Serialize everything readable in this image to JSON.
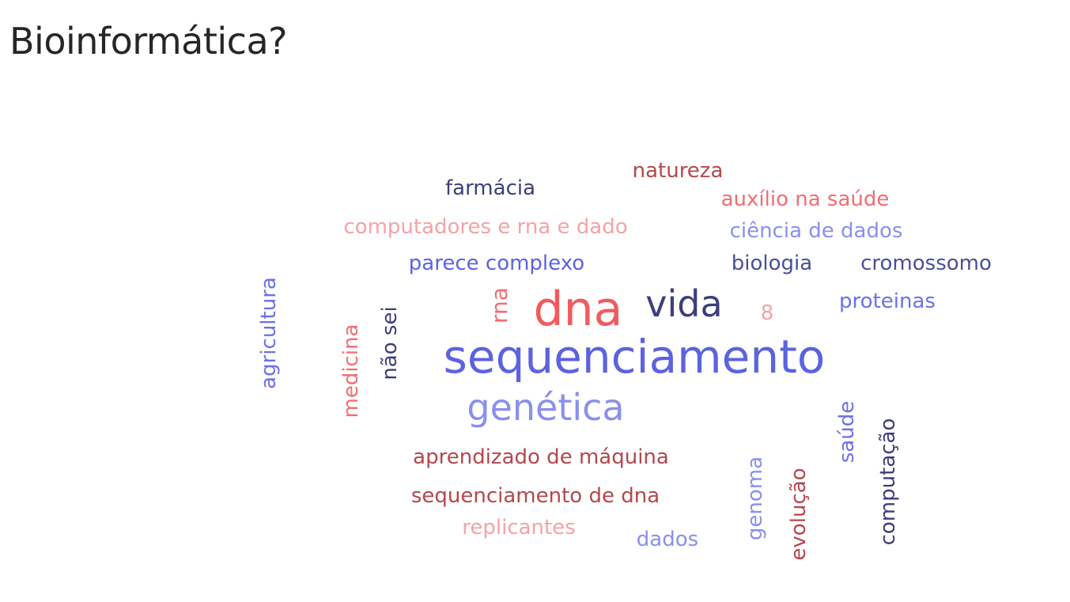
{
  "title": "Bioinformática?",
  "colors": {
    "navy": "#3b3f7a",
    "blue": "#5b63e0",
    "lightblue": "#8a90ec",
    "darkred": "#b5474c",
    "red": "#f25a5e",
    "pink": "#f5a3a6",
    "salmon": "#ee6b70"
  },
  "words": [
    {
      "text": "natureza",
      "color": "#b5474c"
    },
    {
      "text": "farmácia",
      "color": "#3b3f7a"
    },
    {
      "text": "auxílio na saúde",
      "color": "#f26e72"
    },
    {
      "text": "computadores e rna e dado",
      "color": "#f5a3a6"
    },
    {
      "text": "ciência de dados",
      "color": "#8a90ec"
    },
    {
      "text": "parece complexo",
      "color": "#5b63e0"
    },
    {
      "text": "biologia",
      "color": "#4a4f9a"
    },
    {
      "text": "cromossomo",
      "color": "#4a4f9a"
    },
    {
      "text": "rna",
      "color": "#f26e72"
    },
    {
      "text": "dna",
      "color": "#f25a5e"
    },
    {
      "text": "vida",
      "color": "#3b3f7a"
    },
    {
      "text": "8",
      "color": "#f5a3a6"
    },
    {
      "text": "proteinas",
      "color": "#6b72e6"
    },
    {
      "text": "agricultura",
      "color": "#6b72e6"
    },
    {
      "text": "medicina",
      "color": "#f26e72"
    },
    {
      "text": "não sei",
      "color": "#3b3f7a"
    },
    {
      "text": "sequenciamento",
      "color": "#5b63e0"
    },
    {
      "text": "genética",
      "color": "#8a90ec"
    },
    {
      "text": "aprendizado de máquina",
      "color": "#b5474c"
    },
    {
      "text": "sequenciamento de dna",
      "color": "#b5474c"
    },
    {
      "text": "replicantes",
      "color": "#f5a3a6"
    },
    {
      "text": "dados",
      "color": "#8a90ec"
    },
    {
      "text": "genoma",
      "color": "#8a90ec"
    },
    {
      "text": "evolução",
      "color": "#b5474c"
    },
    {
      "text": "saúde",
      "color": "#6b72e6"
    },
    {
      "text": "computação",
      "color": "#3b3f7a"
    }
  ]
}
